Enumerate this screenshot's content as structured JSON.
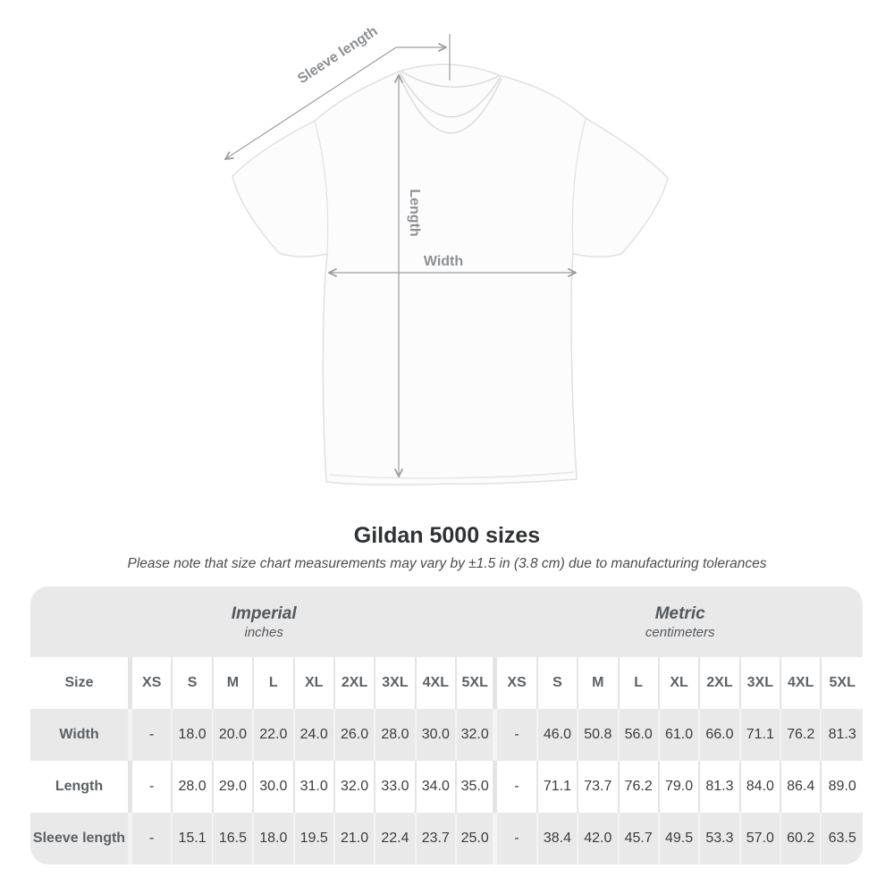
{
  "title": "Gildan 5000 sizes",
  "subtitle": "Please note that size chart measurements may vary by ±1.5 in (3.8 cm) due to manufacturing tolerances",
  "diagram": {
    "labels": {
      "sleeve_length": "Sleeve length",
      "length": "Length",
      "width": "Width"
    }
  },
  "chart_data": {
    "type": "table",
    "title": "Gildan 5000 sizes",
    "size_header": "Size",
    "groups": [
      {
        "label": "Imperial",
        "units": "inches"
      },
      {
        "label": "Metric",
        "units": "centimeters"
      }
    ],
    "sizes": [
      "XS",
      "S",
      "M",
      "L",
      "XL",
      "2XL",
      "3XL",
      "4XL",
      "5XL"
    ],
    "rows": [
      {
        "label": "Width",
        "imperial": [
          "-",
          "18.0",
          "20.0",
          "22.0",
          "24.0",
          "26.0",
          "28.0",
          "30.0",
          "32.0"
        ],
        "metric": [
          "-",
          "46.0",
          "50.8",
          "56.0",
          "61.0",
          "66.0",
          "71.1",
          "76.2",
          "81.3"
        ]
      },
      {
        "label": "Length",
        "imperial": [
          "-",
          "28.0",
          "29.0",
          "30.0",
          "31.0",
          "32.0",
          "33.0",
          "34.0",
          "35.0"
        ],
        "metric": [
          "-",
          "71.1",
          "73.7",
          "76.2",
          "79.0",
          "81.3",
          "84.0",
          "86.4",
          "89.0"
        ]
      },
      {
        "label": "Sleeve length",
        "imperial": [
          "-",
          "15.1",
          "16.5",
          "18.0",
          "19.5",
          "21.0",
          "22.4",
          "23.7",
          "25.0"
        ],
        "metric": [
          "-",
          "38.4",
          "42.0",
          "45.7",
          "49.5",
          "53.3",
          "57.0",
          "60.2",
          "63.5"
        ]
      }
    ]
  },
  "colors": {
    "table_band_gray": "#e9e9e9",
    "row_alt_gray": "#e9e9e9",
    "annotation_gray": "#9a9c9e",
    "header_text": "#5d6165",
    "value_text": "#3a3d40",
    "title_text": "#2f3133"
  }
}
